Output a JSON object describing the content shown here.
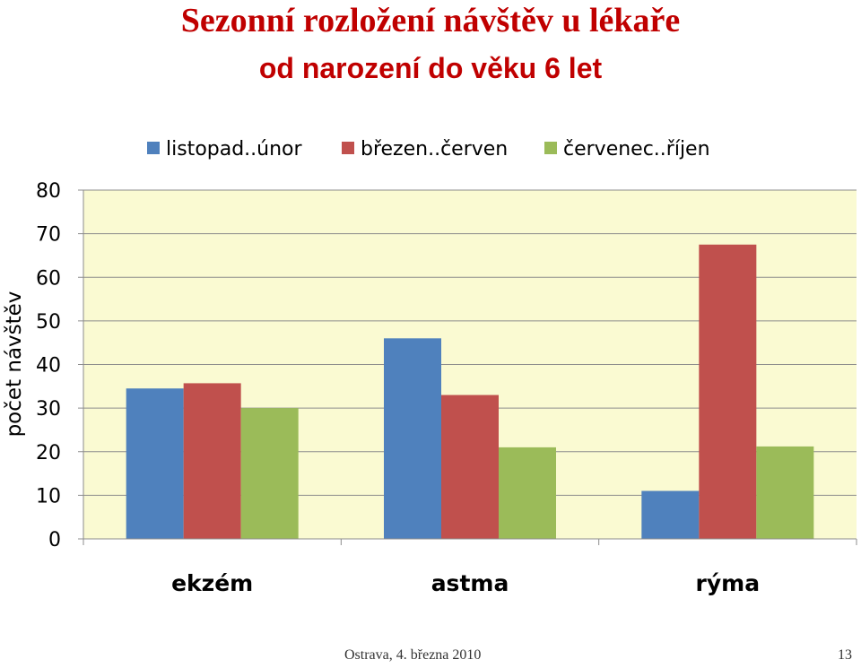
{
  "slide": {
    "title": "Sezonní rozložení návštěv u lékaře",
    "subtitle": "od narození do věku 6 let",
    "footer_date": "Ostrava, 4. března 2010",
    "page_number": "13"
  },
  "colors": {
    "plot_background": "#fafad2",
    "title": "#c00000"
  },
  "chart_data": {
    "type": "bar",
    "categories": [
      "ekzém",
      "astma",
      "rýma"
    ],
    "series": [
      {
        "name": "listopad..únor",
        "color": "#4f81bd",
        "values": [
          34.5,
          46,
          11
        ]
      },
      {
        "name": "březen..červen",
        "color": "#c0504d",
        "values": [
          35.7,
          33,
          67.5
        ]
      },
      {
        "name": "červenec..říjen",
        "color": "#9bbb59",
        "values": [
          30,
          21,
          21.2
        ]
      }
    ],
    "ylabel": "počet návštěv",
    "ylim": [
      0,
      80
    ],
    "yticks": [
      0,
      10,
      20,
      30,
      40,
      50,
      60,
      70,
      80
    ],
    "grid": true,
    "legend_position": "top"
  }
}
